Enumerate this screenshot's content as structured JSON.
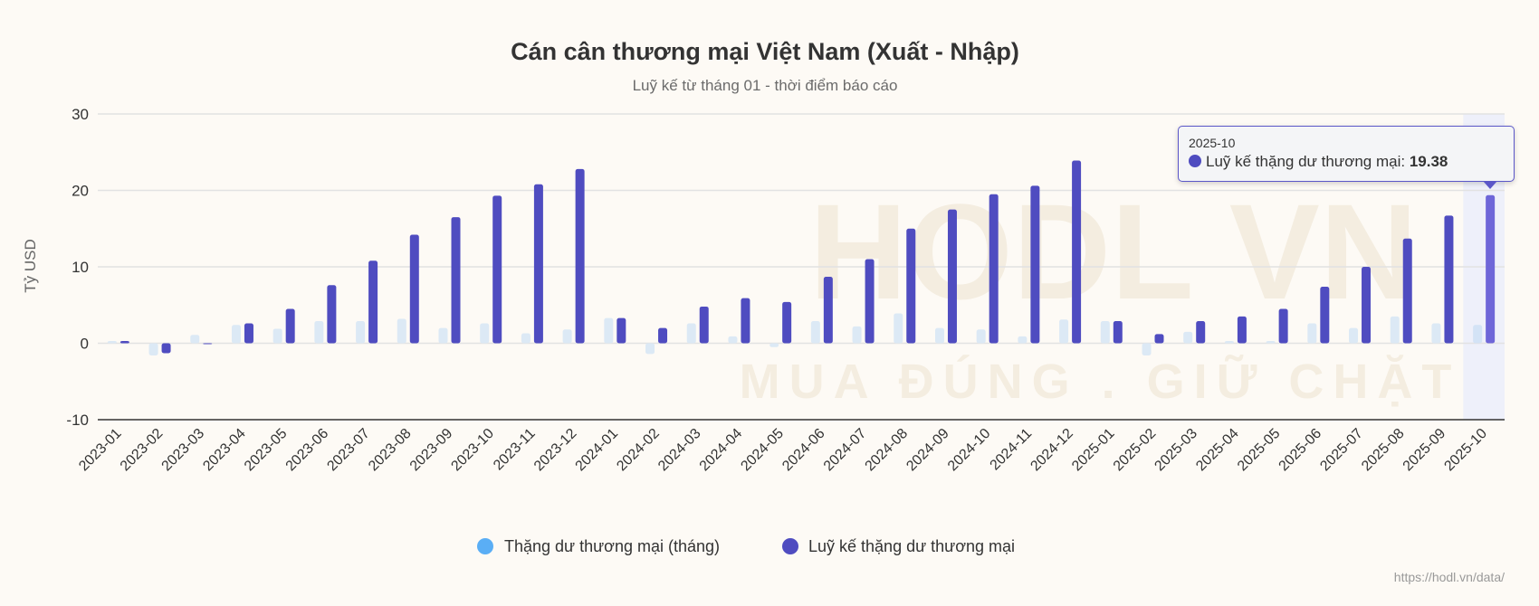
{
  "watermark": {
    "brand": "HODL VN",
    "slogan": "MUA ĐÚNG . GIỮ CHẶT"
  },
  "source_url": "https://hodl.vn/data/",
  "tooltip": {
    "date": "2025-10",
    "series": "Luỹ kế thặng dư thương mại:",
    "value": "19.38"
  },
  "chart_data": {
    "type": "bar",
    "title": "Cán cân thương mại Việt Nam (Xuất - Nhập)",
    "subtitle": "Luỹ kế từ tháng 01 - thời điểm báo cáo",
    "xlabel": "",
    "ylabel": "Tỷ USD",
    "ylim": [
      -10,
      30
    ],
    "yticks": [
      "30",
      "20",
      "10",
      "0",
      "-10"
    ],
    "grid": true,
    "legend_position": "bottom",
    "colors": {
      "monthly": "#dce9f5",
      "monthly_legend": "#5aaef5",
      "cumulative": "#4f4cc0",
      "highlight": "#6e66d8",
      "highlight_band": "#eef0fa"
    },
    "categories": [
      "2023-01",
      "2023-02",
      "2023-03",
      "2023-04",
      "2023-05",
      "2023-06",
      "2023-07",
      "2023-08",
      "2023-09",
      "2023-10",
      "2023-11",
      "2023-12",
      "2024-01",
      "2024-02",
      "2024-03",
      "2024-04",
      "2024-05",
      "2024-06",
      "2024-07",
      "2024-08",
      "2024-09",
      "2024-10",
      "2024-11",
      "2024-12",
      "2025-01",
      "2025-02",
      "2025-03",
      "2025-04",
      "2025-05",
      "2025-06",
      "2025-07",
      "2025-08",
      "2025-09",
      "2025-10"
    ],
    "series": [
      {
        "name": "Thặng dư thương mại (tháng)",
        "values": [
          0.3,
          -1.6,
          1.1,
          2.4,
          1.9,
          2.9,
          2.9,
          3.2,
          2.0,
          2.6,
          1.3,
          1.8,
          3.3,
          -1.4,
          2.6,
          0.9,
          -0.5,
          2.9,
          2.2,
          3.9,
          2.0,
          1.8,
          0.9,
          3.1,
          2.9,
          -1.6,
          1.5,
          0.3,
          0.3,
          2.6,
          2.0,
          3.5,
          2.6,
          2.4
        ]
      },
      {
        "name": "Luỹ kế thặng dư thương mại",
        "values": [
          0.3,
          -1.3,
          -0.1,
          2.6,
          4.5,
          7.6,
          10.8,
          14.2,
          16.5,
          19.3,
          20.8,
          22.8,
          3.3,
          2.0,
          4.8,
          5.9,
          5.4,
          8.7,
          11.0,
          15.0,
          17.5,
          19.5,
          20.6,
          23.9,
          2.9,
          1.2,
          2.9,
          3.5,
          4.5,
          7.4,
          10.0,
          13.7,
          16.7,
          19.38
        ]
      }
    ],
    "highlighted_category": "2025-10"
  }
}
